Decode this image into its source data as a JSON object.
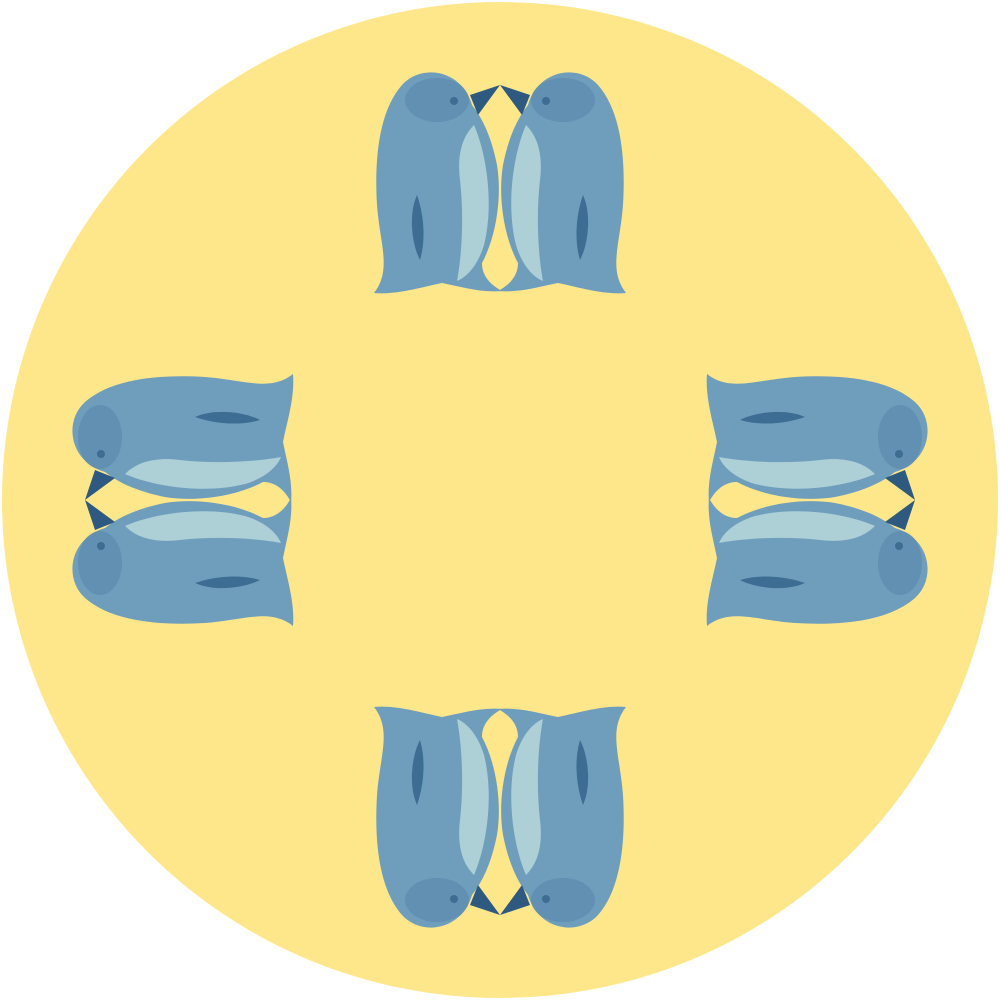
{
  "design": {
    "background_color": "#ffffff",
    "circle_color": "#fee78b",
    "penguin_body_color": "#6f9ebd",
    "penguin_shade_color": "#4f7fa3",
    "penguin_belly_color": "#b8d8dc",
    "penguin_beak_color": "#2f5a80",
    "penguin_wing_color": "#3e6d93",
    "penguin_count": 8,
    "penguin_pairs": [
      {
        "name": "top-pair",
        "motif": "kissing-penguins"
      },
      {
        "name": "right-pair",
        "motif": "kissing-penguins"
      },
      {
        "name": "bottom-pair",
        "motif": "kissing-penguins"
      },
      {
        "name": "left-pair",
        "motif": "kissing-penguins"
      }
    ]
  }
}
